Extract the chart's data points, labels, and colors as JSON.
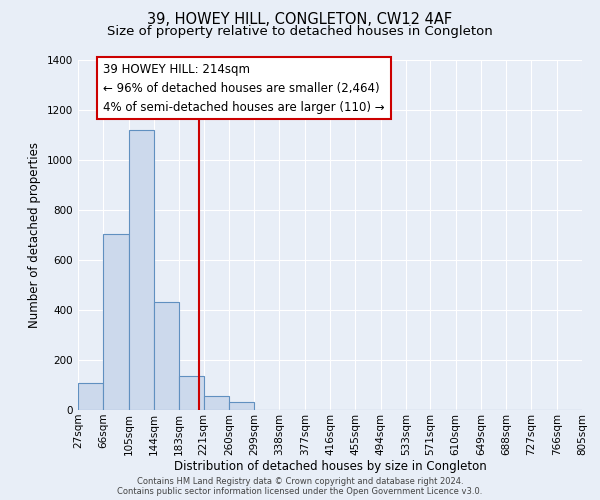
{
  "title": "39, HOWEY HILL, CONGLETON, CW12 4AF",
  "subtitle": "Size of property relative to detached houses in Congleton",
  "xlabel": "Distribution of detached houses by size in Congleton",
  "ylabel": "Number of detached properties",
  "bin_edges": [
    27,
    66,
    105,
    144,
    183,
    221,
    260,
    299,
    338,
    377,
    416,
    455,
    494,
    533,
    571,
    610,
    649,
    688,
    727,
    766,
    805
  ],
  "bin_labels": [
    "27sqm",
    "66sqm",
    "105sqm",
    "144sqm",
    "183sqm",
    "221sqm",
    "260sqm",
    "299sqm",
    "338sqm",
    "377sqm",
    "416sqm",
    "455sqm",
    "494sqm",
    "533sqm",
    "571sqm",
    "610sqm",
    "649sqm",
    "688sqm",
    "727sqm",
    "766sqm",
    "805sqm"
  ],
  "counts": [
    110,
    706,
    1120,
    432,
    135,
    55,
    33,
    0,
    0,
    0,
    0,
    0,
    0,
    0,
    0,
    0,
    0,
    0,
    0,
    0
  ],
  "bar_color": "#ccd9ec",
  "bar_edgecolor": "#6090c0",
  "vline_color": "#cc0000",
  "vline_x": 214,
  "annotation_text": "39 HOWEY HILL: 214sqm\n← 96% of detached houses are smaller (2,464)\n4% of semi-detached houses are larger (110) →",
  "annotation_box_color": "#ffffff",
  "annotation_box_edgecolor": "#cc0000",
  "ylim": [
    0,
    1400
  ],
  "yticks": [
    0,
    200,
    400,
    600,
    800,
    1000,
    1200,
    1400
  ],
  "footer_line1": "Contains HM Land Registry data © Crown copyright and database right 2024.",
  "footer_line2": "Contains public sector information licensed under the Open Government Licence v3.0.",
  "background_color": "#e8eef7",
  "plot_bg_color": "#e8eef7",
  "grid_color": "#ffffff",
  "title_fontsize": 10.5,
  "subtitle_fontsize": 9.5,
  "axis_label_fontsize": 8.5,
  "tick_fontsize": 7.5,
  "annotation_fontsize": 8.5,
  "footer_fontsize": 6.0
}
